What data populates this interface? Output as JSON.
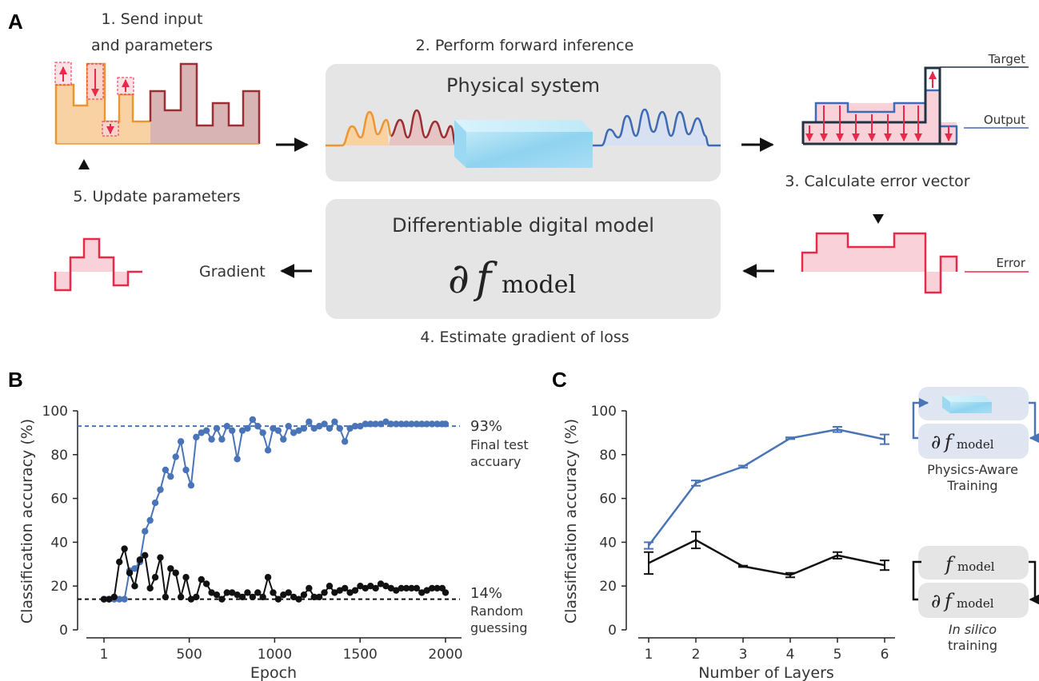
{
  "panel_labels": {
    "a": "A",
    "b": "B",
    "c": "C"
  },
  "panel_a": {
    "step1_line1": "1. Send input",
    "step1_line2": "and parameters",
    "step2": "2. Perform forward inference",
    "step3": "3. Calculate error vector",
    "step4": "4. Estimate gradient of loss",
    "step5": "5. Update parameters",
    "physical_system": "Physical system",
    "digital_model": "Differentiable digital model",
    "partial_symbol": "∂",
    "f_symbol": "f",
    "model_subscript": "model",
    "gradient": "Gradient",
    "target": "Target",
    "output": "Output",
    "error": "Error"
  },
  "chart_b": {
    "ylabel": "Classification accuracy (%)",
    "xlabel": "Epoch",
    "xticks": [
      "1",
      "500",
      "1000",
      "1500",
      "2000"
    ],
    "yticks": [
      "0",
      "20",
      "40",
      "60",
      "80",
      "100"
    ],
    "final_pct": "93%",
    "final_label1": "Final test",
    "final_label2": "accuary",
    "random_pct": "14%",
    "random_label1": "Random",
    "random_label2": "guessing"
  },
  "chart_c": {
    "ylabel": "Classification accuracy (%)",
    "xlabel": "Number of Layers",
    "xticks": [
      "1",
      "2",
      "3",
      "4",
      "5",
      "6"
    ],
    "yticks": [
      "0",
      "20",
      "40",
      "60",
      "80",
      "100"
    ],
    "pat_label1": "Physics-Aware",
    "pat_label2": "Training",
    "insilico_label1": "In silico",
    "insilico_label2": "training"
  },
  "chart_data": [
    {
      "type": "line",
      "xlabel": "Epoch",
      "ylabel": "Classification accuracy (%)",
      "xlim": [
        1,
        2000
      ],
      "ylim": [
        0,
        100
      ],
      "hlines": [
        {
          "y": 93,
          "label": "93% Final test accuary",
          "color": "#4a74b8"
        },
        {
          "y": 14,
          "label": "14% Random guessing",
          "color": "#111111"
        }
      ],
      "series": [
        {
          "color": "#4a74b8",
          "x": [
            1,
            31,
            61,
            91,
            121,
            151,
            181,
            211,
            241,
            271,
            301,
            331,
            361,
            391,
            421,
            451,
            481,
            511,
            541,
            571,
            601,
            631,
            661,
            691,
            721,
            751,
            781,
            811,
            841,
            871,
            901,
            931,
            961,
            991,
            1021,
            1051,
            1081,
            1111,
            1141,
            1171,
            1201,
            1231,
            1261,
            1291,
            1321,
            1351,
            1381,
            1411,
            1441,
            1471,
            1501,
            1531,
            1561,
            1591,
            1621,
            1651,
            1681,
            1711,
            1741,
            1771,
            1801,
            1831,
            1861,
            1891,
            1921,
            1951,
            1981,
            2000
          ],
          "y": [
            14,
            14,
            14,
            14,
            14,
            27,
            28,
            31,
            45,
            50,
            58,
            64,
            73,
            70,
            79,
            86,
            73,
            66,
            88,
            90,
            91,
            87,
            92,
            87,
            93,
            91,
            78,
            91,
            92,
            96,
            93,
            90,
            82,
            92,
            91,
            87,
            93,
            90,
            91,
            92,
            95,
            92,
            93,
            94,
            92,
            95,
            92,
            86,
            92,
            93,
            93,
            94,
            94,
            94,
            94,
            95,
            94,
            94,
            94,
            94,
            94,
            94,
            94,
            94,
            94,
            94,
            94,
            94
          ]
        },
        {
          "color": "#111111",
          "x": [
            1,
            31,
            61,
            91,
            121,
            151,
            181,
            211,
            241,
            271,
            301,
            331,
            361,
            391,
            421,
            451,
            481,
            511,
            541,
            571,
            601,
            631,
            661,
            691,
            721,
            751,
            781,
            811,
            841,
            871,
            901,
            931,
            961,
            991,
            1021,
            1051,
            1081,
            1111,
            1141,
            1171,
            1201,
            1231,
            1261,
            1291,
            1321,
            1351,
            1381,
            1411,
            1441,
            1471,
            1501,
            1531,
            1561,
            1591,
            1621,
            1651,
            1681,
            1711,
            1741,
            1771,
            1801,
            1831,
            1861,
            1891,
            1921,
            1951,
            1981,
            2000
          ],
          "y": [
            14,
            14,
            15,
            31,
            37,
            26,
            20,
            32,
            34,
            19,
            24,
            33,
            15,
            28,
            26,
            15,
            24,
            14,
            15,
            23,
            21,
            17,
            16,
            14,
            17,
            17,
            16,
            15,
            17,
            15,
            17,
            15,
            24,
            17,
            14,
            16,
            17,
            15,
            14,
            16,
            19,
            15,
            15,
            17,
            20,
            17,
            18,
            19,
            17,
            18,
            20,
            19,
            20,
            19,
            21,
            20,
            19,
            18,
            19,
            19,
            19,
            19,
            17,
            18,
            19,
            19,
            19,
            17
          ]
        }
      ]
    },
    {
      "type": "line",
      "xlabel": "Number of Layers",
      "ylabel": "Classification accuracy (%)",
      "xlim": [
        1,
        6
      ],
      "ylim": [
        0,
        100
      ],
      "categories": [
        1,
        2,
        3,
        4,
        5,
        6
      ],
      "series": [
        {
          "name": "Physics-Aware Training",
          "color": "#4a74b8",
          "values": [
            38.5,
            67,
            74.5,
            87.5,
            91.5,
            87
          ],
          "errors": [
            1.5,
            1.2,
            0.5,
            0.4,
            1.2,
            2.2
          ]
        },
        {
          "name": "In silico training",
          "color": "#111111",
          "values": [
            30.5,
            41,
            29,
            25,
            34,
            29.5
          ],
          "errors": [
            5,
            3.8,
            0.3,
            1,
            1.5,
            2.2
          ]
        }
      ]
    }
  ]
}
